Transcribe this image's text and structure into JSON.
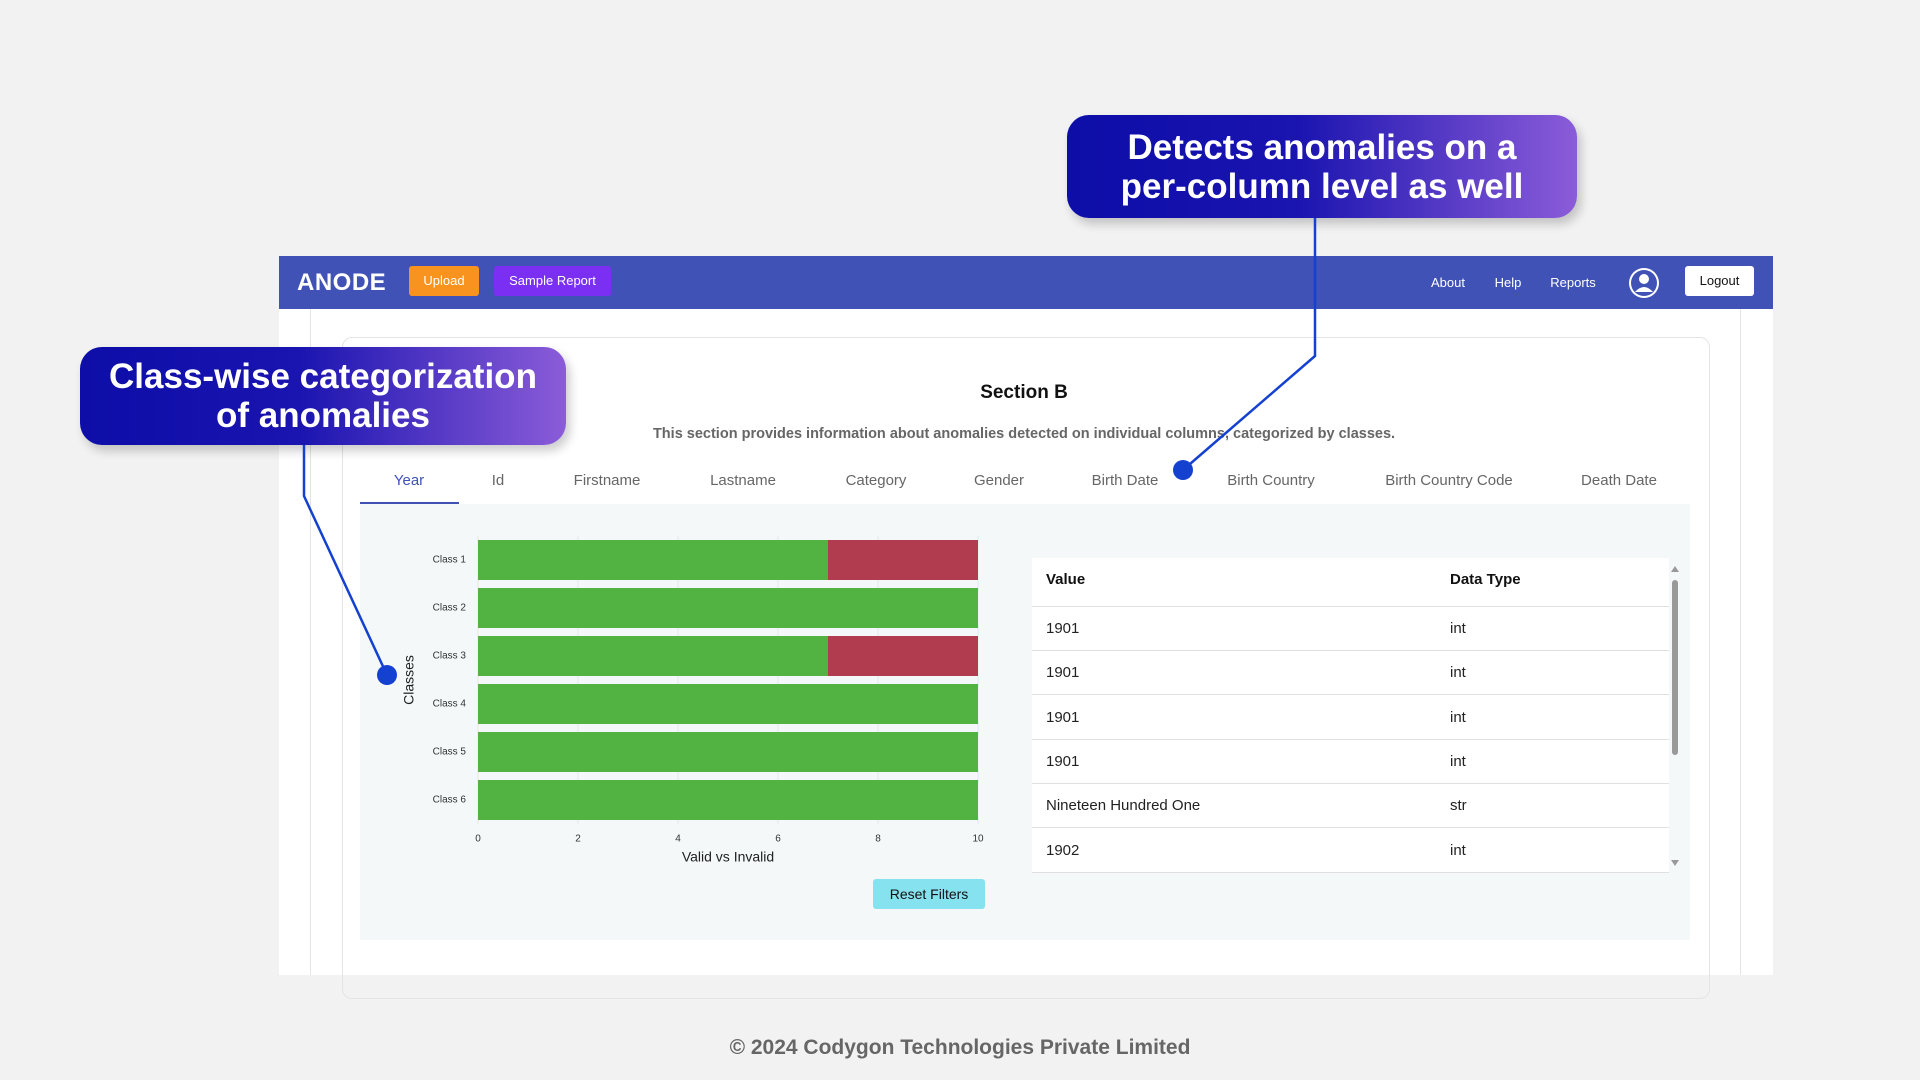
{
  "navbar": {
    "logo": "ANODE",
    "buttons": [
      "Upload",
      "Sample Report"
    ],
    "links": [
      "About",
      "Help",
      "Reports"
    ],
    "logout": "Logout"
  },
  "callouts": [
    "Detects anomalies on a per-column level as well",
    "Class-wise categorization of anomalies"
  ],
  "section": {
    "title": "Section B",
    "description": "This section provides information about anomalies detected on individual columns, categorized by classes."
  },
  "tabs": [
    "Year",
    "Id",
    "Firstname",
    "Lastname",
    "Category",
    "Gender",
    "Birth Date",
    "Birth Country",
    "Birth Country Code",
    "Death Date"
  ],
  "chart_data": {
    "type": "bar",
    "orientation": "horizontal",
    "stacked": true,
    "categories": [
      "Class 1",
      "Class 2",
      "Class 3",
      "Class 4",
      "Class 5",
      "Class 6"
    ],
    "series": [
      {
        "color": "#52b343",
        "values": [
          7,
          10,
          7,
          10,
          10,
          10
        ]
      },
      {
        "color": "#b23c4f",
        "values": [
          3,
          0,
          3,
          0,
          0,
          0
        ]
      }
    ],
    "xlim": [
      0,
      10
    ],
    "xticks": [
      0,
      2,
      4,
      6,
      8,
      10
    ],
    "xlabel": "Valid vs Invalid",
    "ylabel": "Classes",
    "grid": true
  },
  "reset_button": "Reset Filters",
  "table": {
    "columns": [
      "Value",
      "Data Type"
    ],
    "rows": [
      [
        "1901",
        "int"
      ],
      [
        "1901",
        "int"
      ],
      [
        "1901",
        "int"
      ],
      [
        "1901",
        "int"
      ],
      [
        "Nineteen Hundred One",
        "str"
      ],
      [
        "1902",
        "int"
      ]
    ]
  },
  "footer": "© 2024 Codygon Technologies Private Limited"
}
